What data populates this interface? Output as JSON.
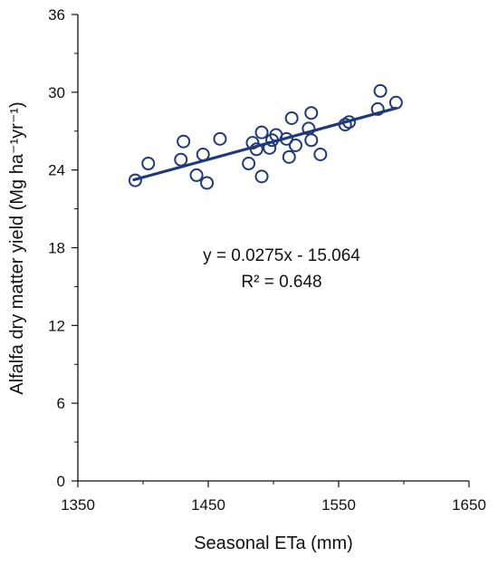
{
  "chart_data": {
    "type": "scatter",
    "title": "",
    "xlabel": "Seasonal ETa (mm)",
    "ylabel": "Alfalfa dry matter yield (Mg ha⁻¹yr⁻¹)",
    "xlim": [
      1350,
      1650
    ],
    "ylim": [
      0,
      36
    ],
    "x_ticks": [
      "1350",
      "1450",
      "1550",
      "1650"
    ],
    "y_ticks": [
      "0",
      "6",
      "12",
      "18",
      "24",
      "30",
      "36"
    ],
    "grid": false,
    "legend": "none",
    "marker_color": "#1f3a7a",
    "series": [
      {
        "points": [
          {
            "x": 1394,
            "y": 23.2
          },
          {
            "x": 1404,
            "y": 24.5
          },
          {
            "x": 1429,
            "y": 24.8
          },
          {
            "x": 1431,
            "y": 26.2
          },
          {
            "x": 1441,
            "y": 23.6
          },
          {
            "x": 1446,
            "y": 25.2
          },
          {
            "x": 1449,
            "y": 23.0
          },
          {
            "x": 1459,
            "y": 26.4
          },
          {
            "x": 1481,
            "y": 24.5
          },
          {
            "x": 1484,
            "y": 26.1
          },
          {
            "x": 1487,
            "y": 25.6
          },
          {
            "x": 1491,
            "y": 26.9
          },
          {
            "x": 1491,
            "y": 23.5
          },
          {
            "x": 1497,
            "y": 25.7
          },
          {
            "x": 1499,
            "y": 26.3
          },
          {
            "x": 1502,
            "y": 26.7
          },
          {
            "x": 1510,
            "y": 26.4
          },
          {
            "x": 1512,
            "y": 25.0
          },
          {
            "x": 1514,
            "y": 28.0
          },
          {
            "x": 1517,
            "y": 25.9
          },
          {
            "x": 1527,
            "y": 27.2
          },
          {
            "x": 1529,
            "y": 28.4
          },
          {
            "x": 1529,
            "y": 26.3
          },
          {
            "x": 1536,
            "y": 25.2
          },
          {
            "x": 1555,
            "y": 27.5
          },
          {
            "x": 1558,
            "y": 27.7
          },
          {
            "x": 1580,
            "y": 28.7
          },
          {
            "x": 1582,
            "y": 30.1
          },
          {
            "x": 1594,
            "y": 29.2
          }
        ]
      }
    ],
    "trendline": {
      "slope": 0.0275,
      "intercept": -15.064,
      "x_range": [
        1393,
        1594
      ],
      "color": "#1f3a7a",
      "equation": "y = 0.0275x - 15.064",
      "r2": "R² = 0.648"
    }
  }
}
